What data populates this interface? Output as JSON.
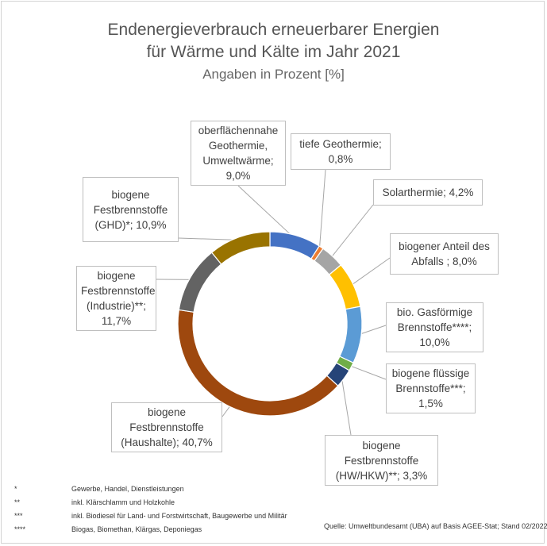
{
  "chart_data": {
    "type": "pie",
    "style": "donut",
    "title": "Endenergieverbrauch erneuerbarer Energien",
    "title_line2": "für Wärme und Kälte im Jahr 2021",
    "subtitle": "Angaben in Prozent [%]",
    "slices": [
      {
        "label_lines": [
          "oberflächennahe",
          "Geothermie,",
          "Umweltwärme;",
          "9,0%"
        ],
        "value": 9.0,
        "color": "#4472C4"
      },
      {
        "label_lines": [
          "tiefe Geothermie;",
          "0,8%"
        ],
        "value": 0.8,
        "color": "#ED7D31"
      },
      {
        "label_lines": [
          "Solarthermie; 4,2%"
        ],
        "value": 4.2,
        "color": "#A5A5A5"
      },
      {
        "label_lines": [
          "biogener Anteil des",
          "Abfalls ; 8,0%"
        ],
        "value": 8.0,
        "color": "#FFC000"
      },
      {
        "label_lines": [
          "bio. Gasförmige",
          "Brennstoffe****;",
          "10,0%"
        ],
        "value": 10.0,
        "color": "#5B9BD5"
      },
      {
        "label_lines": [
          "biogene flüssige",
          "Brennstoffe***;",
          "1,5%"
        ],
        "value": 1.5,
        "color": "#70AD47"
      },
      {
        "label_lines": [
          "biogene",
          "Festbrennstoffe",
          "(HW/HKW)**; 3,3%"
        ],
        "value": 3.3,
        "color": "#264478"
      },
      {
        "label_lines": [
          "biogene",
          "Festbrennstoffe",
          "(Haushalte); 40,7%"
        ],
        "value": 40.7,
        "color": "#9E480E"
      },
      {
        "label_lines": [
          "biogene",
          "Festbrennstoffe",
          "(Industrie)**;",
          "11,7%"
        ],
        "value": 11.7,
        "color": "#636363"
      },
      {
        "label_lines": [
          "biogene",
          "Festbrennstoffe",
          "(GHD)*; 10,9%"
        ],
        "value": 10.9,
        "color": "#997300"
      }
    ],
    "footnotes": [
      {
        "mark": "*",
        "text": "Gewerbe, Handel, Dienstleistungen"
      },
      {
        "mark": "**",
        "text": "inkl. Klärschlamm und Holzkohle"
      },
      {
        "mark": "***",
        "text": "inkl. Biodiesel für Land- und Forstwirtschaft, Baugewerbe und Militär"
      },
      {
        "mark": "****",
        "text": "Biogas, Biomethan, Klärgas, Deponiegas"
      }
    ],
    "source": "Quelle: Umweltbundesamt (UBA) auf Basis AGEE-Stat; Stand 02/2022"
  }
}
